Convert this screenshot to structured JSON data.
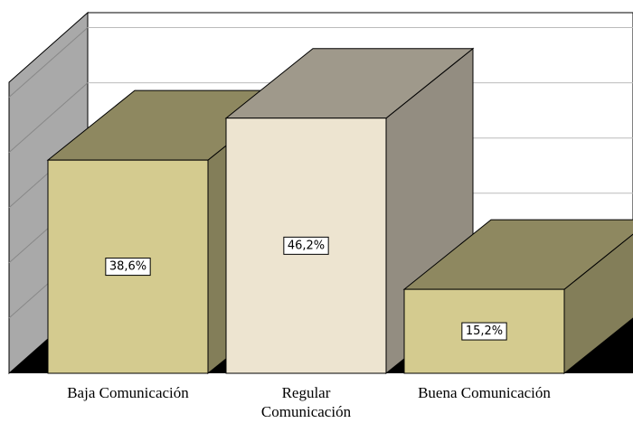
{
  "chart_data": {
    "type": "bar3d",
    "categories": [
      "Baja Comunicación",
      "Regular Comunicación",
      "Buena Comunicación"
    ],
    "values": [
      38.6,
      46.2,
      15.2
    ],
    "value_labels": [
      "38,6%",
      "46,2%",
      "15,2%"
    ],
    "colors": [
      "#d4cb8f",
      "#ede4d0",
      "#d4cb8f"
    ],
    "ylim": [
      0,
      52.7
    ],
    "yticks": [
      0,
      10,
      20,
      30,
      40,
      50
    ],
    "grid": true
  }
}
